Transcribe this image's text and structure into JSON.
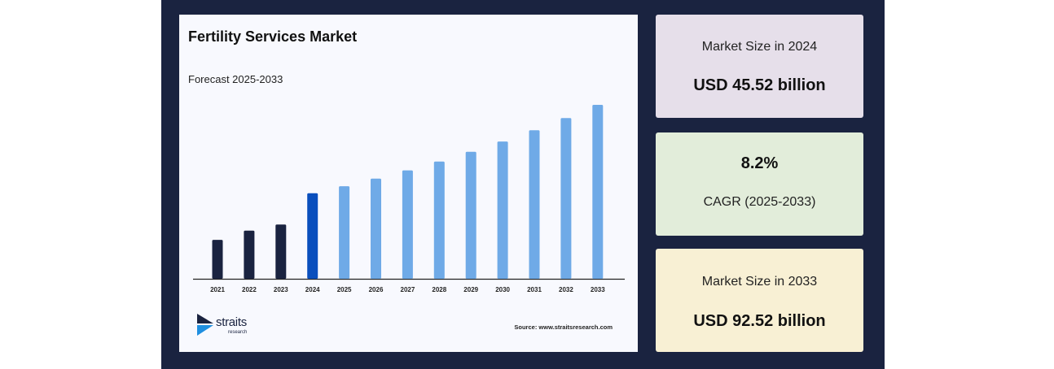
{
  "chart_data": {
    "type": "bar",
    "title": "Fertility Services Market",
    "subtitle": "Forecast 2025-2033",
    "categories": [
      "2021",
      "2022",
      "2023",
      "2024",
      "2025",
      "2026",
      "2027",
      "2028",
      "2029",
      "2030",
      "2031",
      "2032",
      "2033"
    ],
    "values": [
      20.7,
      25.6,
      28.9,
      45.52,
      49.25,
      53.29,
      57.66,
      62.39,
      67.51,
      73.04,
      79.03,
      85.51,
      92.52
    ],
    "bar_colors": [
      "#1a2340",
      "#1a2340",
      "#1a2340",
      "#0a4fbd",
      "#6faae7",
      "#6faae7",
      "#6faae7",
      "#6faae7",
      "#6faae7",
      "#6faae7",
      "#6faae7",
      "#6faae7",
      "#6faae7"
    ],
    "xlabel": "",
    "ylabel": "",
    "ylim": [
      0,
      92.52
    ],
    "grid": false,
    "legend": "none"
  },
  "branding": {
    "logo_text": "straits",
    "logo_subtext": "research",
    "source": "Source: www.straitsresearch.com"
  },
  "stats": [
    {
      "label": "Market Size in 2024",
      "value": "USD 45.52 billion",
      "bg": "#e6dfea"
    },
    {
      "label": "CAGR (2025-2033)",
      "value": "8.2%",
      "bg": "#e2edda"
    },
    {
      "label": "Market Size in 2033",
      "value": "USD 92.52 billion",
      "bg": "#f8f0d4"
    }
  ]
}
